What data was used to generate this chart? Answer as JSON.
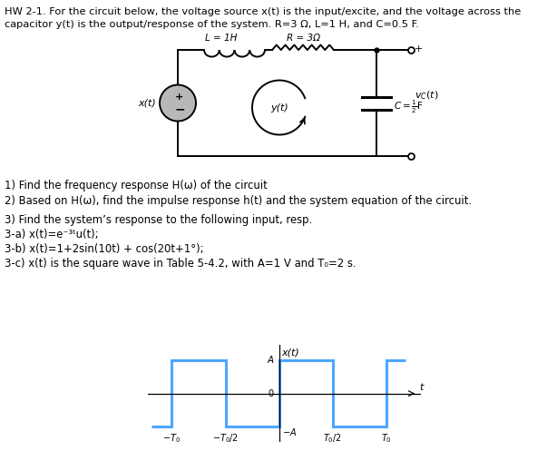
{
  "title_line1": "HW 2-1. For the circuit below, the voltage source x(t) is the input/excite, and the voltage across the",
  "title_line2": "capacitor y(t) is the output/response of the system. R=3 Ω, L=1 H, and C=0.5 F.",
  "questions": [
    "1) Find the frequency response H(ω) of the circuit",
    "2) Based on H(ω), find the impulse response h(t) and the system equation of the circuit.",
    "3) Find the system’s response to the following input, resp.",
    "3-a) x(t)=e⁻³ᵗu(t);",
    "3-b) x(t)=1+2sin(10t) + cos(20t+1°);",
    "3-c) x(t) is the square wave in Table 5-4.2, with A=1 V and T₀=2 s."
  ],
  "bg_color": "#ffffff",
  "text_color": "#000000",
  "circuit_color": "#000000",
  "sq_wave_color": "#4da6ff",
  "sq_wave_lw": 2.2
}
